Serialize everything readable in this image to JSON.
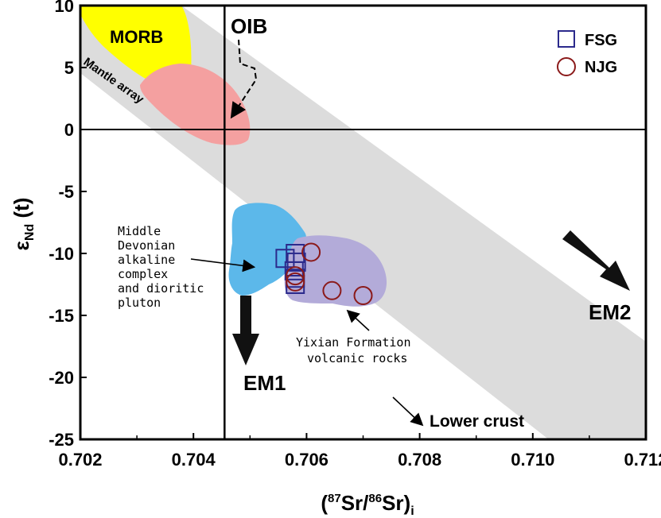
{
  "chart_data": {
    "type": "scatter",
    "title": "",
    "xlabel": "(87Sr/86Sr)i",
    "xlabel_parts": {
      "open": "(",
      "sup1": "87",
      "mid1": "Sr/",
      "sup2": "86",
      "mid2": "Sr)",
      "sub": "i"
    },
    "ylabel": "εNd (t)",
    "ylabel_parts": {
      "main": "ε",
      "sub": "Nd",
      "rest": " (t)"
    },
    "xlim": [
      0.702,
      0.712
    ],
    "ylim": [
      -25,
      10
    ],
    "x_ticks": [
      0.702,
      0.704,
      0.706,
      0.708,
      0.71,
      0.712
    ],
    "x_tick_labels": [
      "0.702",
      "0.704",
      "0.706",
      "0.708",
      "0.710",
      "0.712"
    ],
    "y_ticks": [
      10,
      5,
      0,
      -5,
      -10,
      -15,
      -20,
      -25
    ],
    "y_tick_labels": [
      "10",
      "5",
      "0",
      "-5",
      "-10",
      "-15",
      "-20",
      "-25"
    ],
    "reference_lines": {
      "vertical_x": 0.70455,
      "horizontal_y": 0
    },
    "legend": {
      "placement": "top-right",
      "entries": [
        {
          "label": "FSG",
          "marker": "square",
          "color": "#2b2a8c"
        },
        {
          "label": "NJG",
          "marker": "circle",
          "color": "#8b1a1a"
        }
      ]
    },
    "series": [
      {
        "name": "FSG",
        "marker": "square",
        "color": "#2b2a8c",
        "points": [
          [
            0.70562,
            -10.4
          ],
          [
            0.7058,
            -10.0
          ],
          [
            0.70582,
            -10.7
          ],
          [
            0.70578,
            -11.4
          ],
          [
            0.7058,
            -12.0
          ],
          [
            0.7058,
            -12.5
          ]
        ]
      },
      {
        "name": "NJG",
        "marker": "circle",
        "color": "#8b1a1a",
        "points": [
          [
            0.70608,
            -9.9
          ],
          [
            0.7058,
            -11.8
          ],
          [
            0.7058,
            -12.3
          ],
          [
            0.70645,
            -13.0
          ],
          [
            0.707,
            -13.4
          ]
        ]
      }
    ],
    "fields": [
      {
        "name": "MORB",
        "color": "#ffff00"
      },
      {
        "name": "OIB",
        "color": "#f4a0a0"
      },
      {
        "name": "Mantle array",
        "color": "#dcdcdc"
      },
      {
        "name": "Middle Devonian alkaline complex and dioritic pluton",
        "color": "#5cb8ea"
      },
      {
        "name": "Yixian Formation volcanic rocks",
        "color": "#b3abd9"
      }
    ],
    "annotations": {
      "morb": "MORB",
      "oib": "OIB",
      "mantle_array": "Mantle array",
      "em1": "EM1",
      "em2": "EM2",
      "lower_crust": "Lower crust",
      "devonian": [
        "Middle",
        "Devonian",
        "alkaline",
        "complex",
        "and dioritic",
        "pluton"
      ],
      "yixian": [
        "Yixian Formation",
        "volcanic rocks"
      ]
    }
  }
}
